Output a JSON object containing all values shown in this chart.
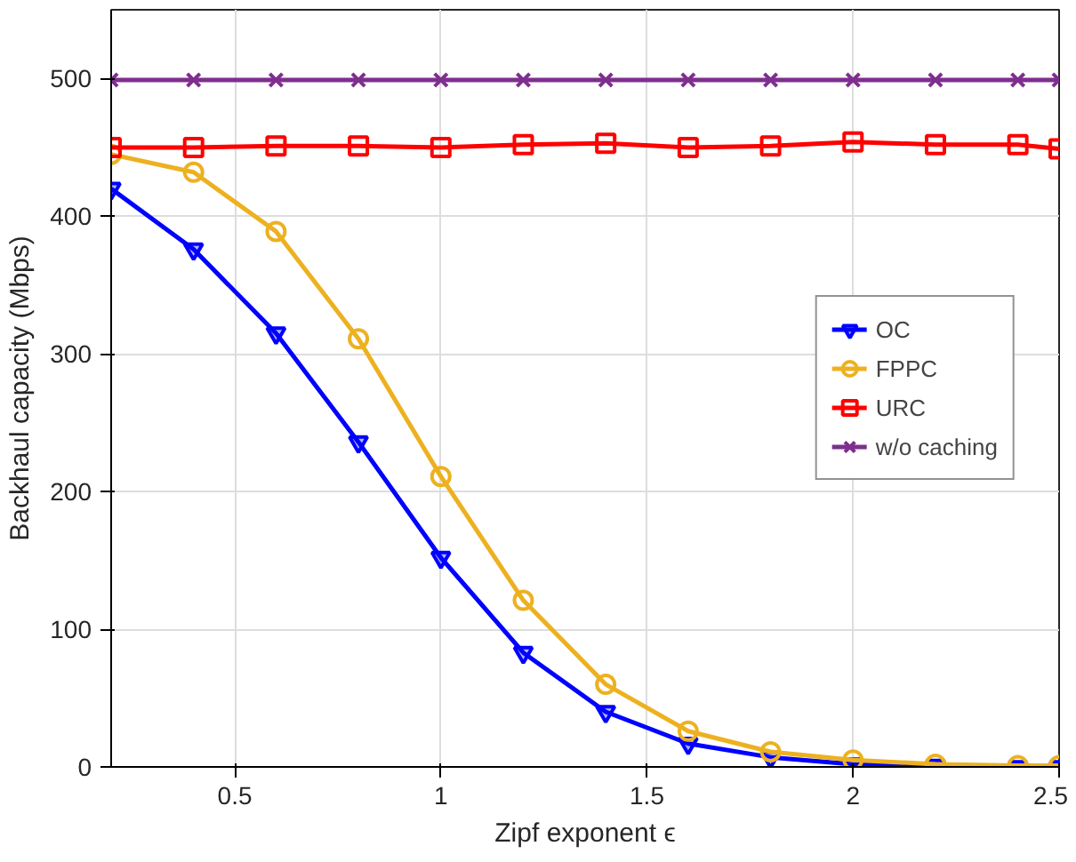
{
  "chart_data": {
    "type": "line",
    "xlabel": "Zipf exponent ϵ",
    "ylabel": "Backhaul capacity (Mbps)",
    "x": [
      0.2,
      0.4,
      0.6,
      0.8,
      1.0,
      1.2,
      1.4,
      1.6,
      1.8,
      2.0,
      2.2,
      2.4,
      2.5
    ],
    "xlim": [
      0.2,
      2.5
    ],
    "xticks": [
      0.5,
      1,
      1.5,
      2,
      2.5
    ],
    "ylim": [
      0,
      550
    ],
    "yticks": [
      0,
      100,
      200,
      300,
      400,
      500
    ],
    "grid": true,
    "legend": "right",
    "line_style": "solid",
    "series": [
      {
        "name": "OC",
        "color": "#0000ff",
        "marker": "triangle",
        "values": [
          420,
          376,
          315,
          236,
          152,
          83,
          40,
          17,
          7,
          2,
          1,
          0,
          0
        ]
      },
      {
        "name": "FPPC",
        "color": "#edb120",
        "marker": "circle",
        "values": [
          445,
          432,
          389,
          311,
          211,
          121,
          60,
          26,
          11,
          5,
          2,
          1,
          1
        ]
      },
      {
        "name": "URC",
        "color": "#ff0000",
        "marker": "square",
        "values": [
          450,
          450,
          451,
          451,
          450,
          452,
          453,
          450,
          451,
          454,
          452,
          452,
          449
        ]
      },
      {
        "name": "w/o caching",
        "color": "#7e2f8e",
        "marker": "cross",
        "values": [
          499,
          499,
          499,
          499,
          499,
          499,
          499,
          499,
          499,
          499,
          499,
          499,
          499
        ]
      }
    ]
  }
}
